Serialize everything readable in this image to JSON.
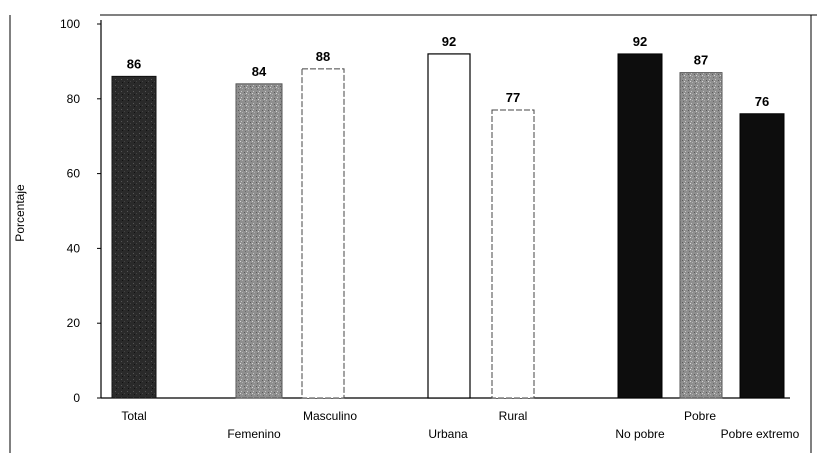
{
  "chart_data": {
    "type": "bar",
    "ylabel": "Porcentaje",
    "ylim": [
      0,
      100
    ],
    "yticks": [
      0,
      20,
      40,
      60,
      80,
      100
    ],
    "grid": false,
    "legend": "none",
    "bars": [
      {
        "category": "Total",
        "value": 86,
        "fill": "#262626",
        "texture": "speckle-dark"
      },
      {
        "category": "Femenino",
        "value": 84,
        "fill": "#8c8c8c",
        "texture": "speckle-gray"
      },
      {
        "category": "Masculino",
        "value": 88,
        "fill": "#ffffff",
        "texture": "outline-dashed"
      },
      {
        "category": "Urbana",
        "value": 92,
        "fill": "#ffffff",
        "texture": "outline"
      },
      {
        "category": "Rural",
        "value": 77,
        "fill": "#ffffff",
        "texture": "outline-dashed"
      },
      {
        "category": "No pobre",
        "value": 92,
        "fill": "#0d0d0d",
        "texture": "solid"
      },
      {
        "category": "Pobre",
        "value": 87,
        "fill": "#9a9a9a",
        "texture": "speckle-gray"
      },
      {
        "category": "Pobre extremo",
        "value": 76,
        "fill": "#0d0d0d",
        "texture": "solid"
      }
    ]
  }
}
